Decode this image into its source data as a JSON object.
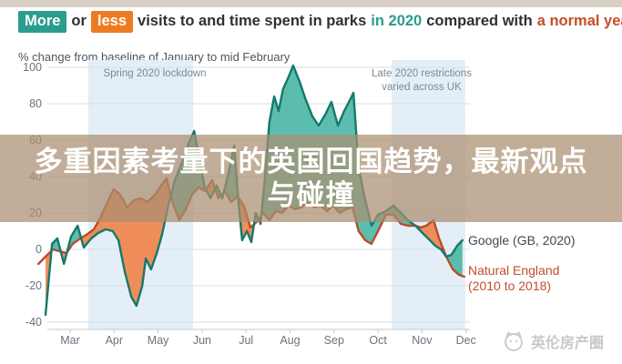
{
  "header": {
    "badge_more": "More",
    "word_or": "or",
    "badge_less": "less",
    "title_mid": "visits to and time spent in parks",
    "highlight_2020": "in 2020",
    "compared": "compared with",
    "highlight_normal": "a normal year."
  },
  "overlay": {
    "line1": "多重因素考量下的英国回国趋势，最新观点",
    "line2": "与碰撞"
  },
  "watermark": {
    "text": "英伦房产圈"
  },
  "colors": {
    "badge_teal": "#2a9d8f",
    "badge_orange": "#ee7b23",
    "highlight_red": "#c44d28",
    "band_blue": "#e4eef7",
    "overlay_tan": "rgba(170,143,112,0.72)",
    "google_stroke": "#15796b",
    "google_fill": "#4fb8a7",
    "natural_stroke": "#b94b28",
    "natural_fill": "#f0854f"
  },
  "chart_data": {
    "type": "area",
    "title": "More or less visits to and time spent in parks in 2020 compared with a normal year.",
    "xlabel": "",
    "ylabel": "% change from baseline of January to mid February",
    "x_axis": {
      "unit": "months of 2020",
      "tick_labels": [
        "Mar",
        "Apr",
        "May",
        "Jun",
        "Jul",
        "Aug",
        "Sep",
        "Oct",
        "Nov",
        "Dec"
      ]
    },
    "y_axis": {
      "min": -40,
      "max": 100,
      "ticks": [
        100,
        80,
        60,
        40,
        20,
        0,
        -20,
        -40
      ],
      "label": "% change from baseline of January to mid February"
    },
    "grid": true,
    "legend_position": "right-outside",
    "annotations": [
      {
        "label": "Spring 2020 lockdown",
        "x_from": 0.41,
        "x_to": 2.8
      },
      {
        "label": "Late 2020 restrictions varied across UK",
        "x_from": 7.31,
        "x_to": 8.98
      }
    ],
    "series": [
      {
        "name": "Google (GB, 2020)",
        "color": "#15796b",
        "fill": "#4fb8a7",
        "points": [
          [
            -0.56,
            -36
          ],
          [
            -0.41,
            3
          ],
          [
            -0.29,
            6
          ],
          [
            -0.14,
            -8
          ],
          [
            0.02,
            7
          ],
          [
            0.17,
            13
          ],
          [
            0.31,
            1
          ],
          [
            0.48,
            6
          ],
          [
            0.64,
            9
          ],
          [
            0.81,
            11
          ],
          [
            0.97,
            10
          ],
          [
            1.1,
            5
          ],
          [
            1.24,
            -12
          ],
          [
            1.39,
            -26
          ],
          [
            1.51,
            -31
          ],
          [
            1.64,
            -20
          ],
          [
            1.72,
            -5
          ],
          [
            1.84,
            -11
          ],
          [
            1.97,
            -2
          ],
          [
            2.09,
            8
          ],
          [
            2.24,
            25
          ],
          [
            2.38,
            38
          ],
          [
            2.55,
            48
          ],
          [
            2.69,
            58
          ],
          [
            2.82,
            65
          ],
          [
            2.94,
            50
          ],
          [
            3.06,
            34
          ],
          [
            3.19,
            28
          ],
          [
            3.33,
            35
          ],
          [
            3.46,
            28
          ],
          [
            3.6,
            42
          ],
          [
            3.73,
            57
          ],
          [
            3.83,
            25
          ],
          [
            3.91,
            5
          ],
          [
            4.02,
            10
          ],
          [
            4.12,
            4
          ],
          [
            4.22,
            20
          ],
          [
            4.33,
            14
          ],
          [
            4.43,
            40
          ],
          [
            4.53,
            70
          ],
          [
            4.64,
            84
          ],
          [
            4.74,
            76
          ],
          [
            4.84,
            88
          ],
          [
            4.97,
            95
          ],
          [
            5.07,
            101
          ],
          [
            5.22,
            92
          ],
          [
            5.36,
            82
          ],
          [
            5.51,
            73
          ],
          [
            5.65,
            68
          ],
          [
            5.8,
            74
          ],
          [
            5.94,
            81
          ],
          [
            6.09,
            68
          ],
          [
            6.23,
            76
          ],
          [
            6.36,
            82
          ],
          [
            6.44,
            86
          ],
          [
            6.56,
            45
          ],
          [
            6.69,
            29
          ],
          [
            6.85,
            13
          ],
          [
            7.0,
            19
          ],
          [
            7.18,
            21
          ],
          [
            7.35,
            24
          ],
          [
            7.52,
            20
          ],
          [
            7.68,
            16
          ],
          [
            7.85,
            13
          ],
          [
            8.01,
            9
          ],
          [
            8.18,
            5
          ],
          [
            8.3,
            2
          ],
          [
            8.43,
            0
          ],
          [
            8.55,
            -4
          ],
          [
            8.67,
            -3
          ],
          [
            8.8,
            2
          ],
          [
            8.92,
            5
          ]
        ]
      },
      {
        "name": "Natural England (2010 to 2018)",
        "color": "#b94b28",
        "fill": "#f0854f",
        "points": [
          [
            -0.72,
            -8
          ],
          [
            -0.56,
            -4
          ],
          [
            -0.39,
            0
          ],
          [
            -0.25,
            -1
          ],
          [
            -0.08,
            -2
          ],
          [
            0.06,
            3
          ],
          [
            0.23,
            6
          ],
          [
            0.37,
            8
          ],
          [
            0.54,
            11
          ],
          [
            0.68,
            17
          ],
          [
            0.83,
            25
          ],
          [
            0.99,
            33
          ],
          [
            1.14,
            30
          ],
          [
            1.3,
            23
          ],
          [
            1.45,
            27
          ],
          [
            1.61,
            28
          ],
          [
            1.76,
            26
          ],
          [
            1.93,
            30
          ],
          [
            2.07,
            35
          ],
          [
            2.19,
            39
          ],
          [
            2.34,
            25
          ],
          [
            2.48,
            16
          ],
          [
            2.63,
            22
          ],
          [
            2.77,
            30
          ],
          [
            2.92,
            34
          ],
          [
            3.06,
            32
          ],
          [
            3.23,
            38
          ],
          [
            3.37,
            28
          ],
          [
            3.52,
            32
          ],
          [
            3.66,
            26
          ],
          [
            3.81,
            29
          ],
          [
            3.95,
            24
          ],
          [
            4.1,
            12
          ],
          [
            4.24,
            15
          ],
          [
            4.39,
            20
          ],
          [
            4.53,
            16
          ],
          [
            4.68,
            21
          ],
          [
            4.82,
            20
          ],
          [
            4.97,
            24
          ],
          [
            5.11,
            22
          ],
          [
            5.26,
            23
          ],
          [
            5.4,
            26
          ],
          [
            5.55,
            23
          ],
          [
            5.69,
            24
          ],
          [
            5.84,
            21
          ],
          [
            5.98,
            24
          ],
          [
            6.13,
            20
          ],
          [
            6.27,
            22
          ],
          [
            6.42,
            23
          ],
          [
            6.56,
            10
          ],
          [
            6.71,
            5
          ],
          [
            6.85,
            3
          ],
          [
            7.0,
            10
          ],
          [
            7.18,
            19
          ],
          [
            7.35,
            19
          ],
          [
            7.52,
            14
          ],
          [
            7.68,
            13
          ],
          [
            7.85,
            13
          ],
          [
            7.97,
            12
          ],
          [
            8.1,
            13
          ],
          [
            8.26,
            16
          ],
          [
            8.39,
            6
          ],
          [
            8.55,
            -4
          ],
          [
            8.7,
            -11
          ],
          [
            8.84,
            -14
          ],
          [
            8.96,
            -15
          ]
        ]
      }
    ]
  }
}
